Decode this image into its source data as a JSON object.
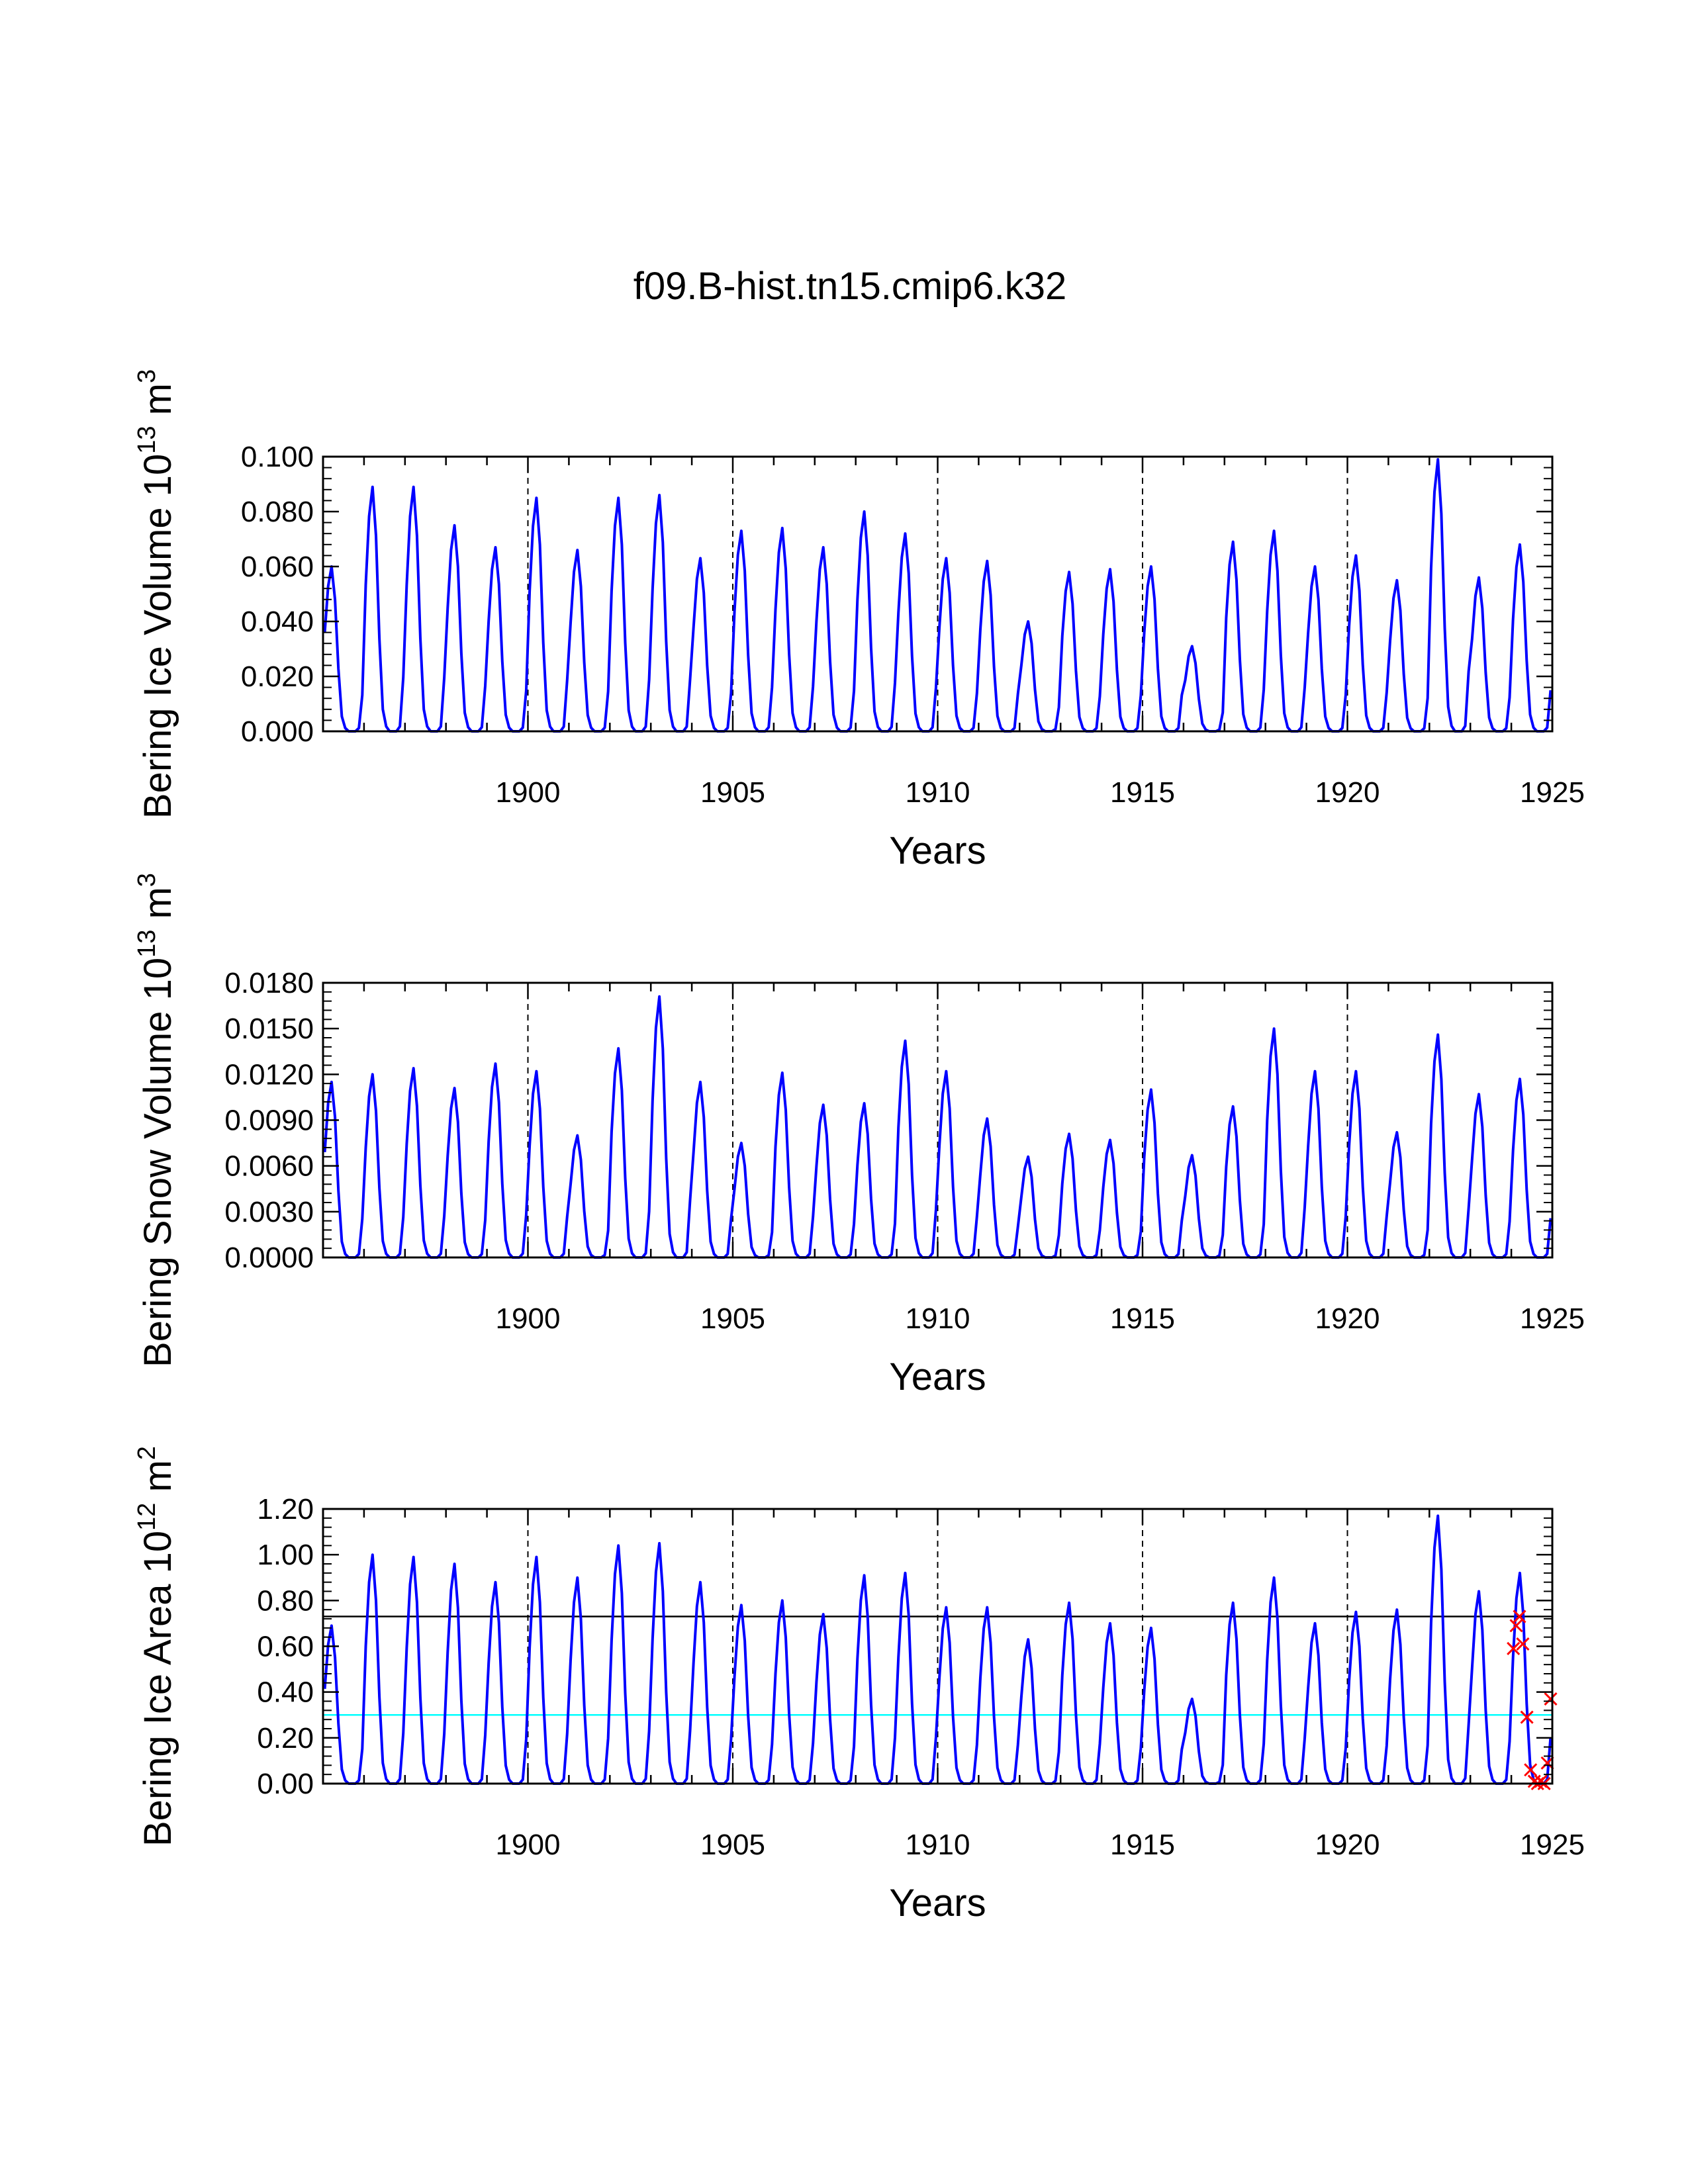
{
  "chart_data": {
    "title": "f09.B-hist.tn15.cmip6.k32",
    "type": "line",
    "xlim": [
      1895,
      1925
    ],
    "months_per_year": 12,
    "colors": {
      "series": "#0000ff",
      "cyan_ref": "#00ffff",
      "black_ref": "#000000",
      "markers": "#ff0000"
    },
    "panels": [
      {
        "id": "ice_volume",
        "ylabel": "Bering Ice Volume",
        "units_base": "10",
        "units_exp": "13",
        "units_unit": "m",
        "units_unit_exp": "3",
        "xlabel": "Years",
        "ylim": [
          0,
          0.1
        ],
        "yticks": [
          "0.000",
          "0.020",
          "0.040",
          "0.060",
          "0.080",
          "0.100"
        ],
        "ytick_values": [
          0,
          0.02,
          0.04,
          0.06,
          0.08,
          0.1
        ],
        "xticks": [
          "1900",
          "1905",
          "1910",
          "1915",
          "1920",
          "1925"
        ],
        "xtick_values": [
          1900,
          1905,
          1910,
          1915,
          1920,
          1925
        ],
        "series_name": "Bering Ice Volume",
        "annual_peaks": [
          0.06,
          0.089,
          0.089,
          0.075,
          0.067,
          0.085,
          0.066,
          0.085,
          0.086,
          0.063,
          0.073,
          0.074,
          0.067,
          0.08,
          0.072,
          0.063,
          0.062,
          0.04,
          0.058,
          0.059,
          0.06,
          0.031,
          0.069,
          0.073,
          0.06,
          0.064,
          0.055,
          0.099,
          0.056,
          0.068
        ]
      },
      {
        "id": "snow_volume",
        "ylabel": "Bering Snow Volume",
        "units_base": "10",
        "units_exp": "13",
        "units_unit": "m",
        "units_unit_exp": "3",
        "xlabel": "Years",
        "ylim": [
          0,
          0.018
        ],
        "yticks": [
          "0.0000",
          "0.0030",
          "0.0060",
          "0.0090",
          "0.0120",
          "0.0150",
          "0.0180"
        ],
        "ytick_values": [
          0,
          0.003,
          0.006,
          0.009,
          0.012,
          0.015,
          0.018
        ],
        "xticks": [
          "1900",
          "1905",
          "1910",
          "1915",
          "1920",
          "1925"
        ],
        "xtick_values": [
          1900,
          1905,
          1910,
          1915,
          1920,
          1925
        ],
        "series_name": "Bering Snow Volume",
        "annual_peaks": [
          0.0115,
          0.012,
          0.0124,
          0.0111,
          0.0127,
          0.0122,
          0.008,
          0.0137,
          0.0171,
          0.0115,
          0.0075,
          0.0121,
          0.01,
          0.0101,
          0.0142,
          0.0122,
          0.0091,
          0.0066,
          0.0081,
          0.0077,
          0.011,
          0.0067,
          0.0099,
          0.015,
          0.0122,
          0.0122,
          0.0082,
          0.0146,
          0.0107,
          0.0117
        ]
      },
      {
        "id": "ice_area",
        "ylabel": "Bering Ice Area",
        "units_base": "10",
        "units_exp": "12",
        "units_unit": "m",
        "units_unit_exp": "2",
        "xlabel": "Years",
        "ylim": [
          0,
          1.2
        ],
        "yticks": [
          "0.00",
          "0.20",
          "0.40",
          "0.60",
          "0.80",
          "1.00",
          "1.20"
        ],
        "ytick_values": [
          0,
          0.2,
          0.4,
          0.6,
          0.8,
          1.0,
          1.2
        ],
        "xticks": [
          "1900",
          "1905",
          "1910",
          "1915",
          "1920",
          "1925"
        ],
        "xtick_values": [
          1900,
          1905,
          1910,
          1915,
          1920,
          1925
        ],
        "series_name": "Bering Ice Area",
        "annual_peaks": [
          0.69,
          1.0,
          0.99,
          0.96,
          0.88,
          0.99,
          0.9,
          1.04,
          1.05,
          0.88,
          0.78,
          0.8,
          0.74,
          0.91,
          0.92,
          0.77,
          0.77,
          0.63,
          0.79,
          0.7,
          0.68,
          0.37,
          0.79,
          0.9,
          0.7,
          0.75,
          0.76,
          1.17,
          0.84,
          0.92
        ],
        "reference_lines": [
          {
            "name": "black-reference-line",
            "value": 0.73
          },
          {
            "name": "cyan-reference-line",
            "value": 0.3
          }
        ],
        "markers": [
          {
            "x": 1924.05,
            "y": 0.59
          },
          {
            "x": 1924.12,
            "y": 0.69
          },
          {
            "x": 1924.2,
            "y": 0.73
          },
          {
            "x": 1924.28,
            "y": 0.61
          },
          {
            "x": 1924.38,
            "y": 0.29
          },
          {
            "x": 1924.47,
            "y": 0.06
          },
          {
            "x": 1924.56,
            "y": 0.01
          },
          {
            "x": 1924.64,
            "y": 0.0
          },
          {
            "x": 1924.72,
            "y": 0.01
          },
          {
            "x": 1924.8,
            "y": 0.0
          },
          {
            "x": 1924.88,
            "y": 0.09
          },
          {
            "x": 1924.96,
            "y": 0.37
          }
        ]
      }
    ]
  }
}
